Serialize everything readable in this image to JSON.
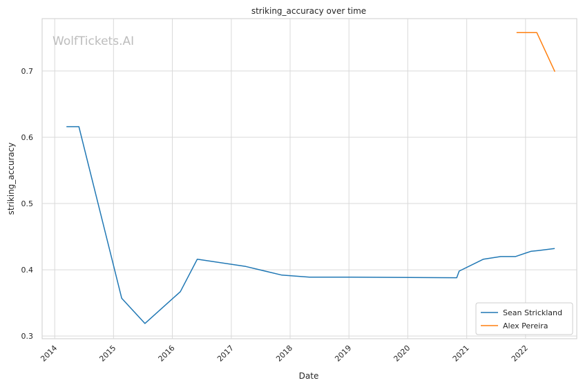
{
  "chart_data": {
    "type": "line",
    "title": "striking_accuracy over time",
    "xlabel": "Date",
    "ylabel": "striking_accuracy",
    "watermark": "WolfTickets.AI",
    "x_ticks": [
      "2014",
      "2015",
      "2016",
      "2017",
      "2018",
      "2019",
      "2020",
      "2021",
      "2022"
    ],
    "y_ticks": [
      0.3,
      0.4,
      0.5,
      0.6,
      0.7
    ],
    "xlim": [
      "2013-10-15",
      "2022-11-15"
    ],
    "ylim": [
      0.296,
      0.779
    ],
    "grid": true,
    "legend_position": "lower-right",
    "series": [
      {
        "name": "Sean Strickland",
        "color": "#1f77b4",
        "points": [
          {
            "x": "2014-03-15",
            "y": 0.616
          },
          {
            "x": "2014-05-31",
            "y": 0.616
          },
          {
            "x": "2015-02-21",
            "y": 0.357
          },
          {
            "x": "2015-07-15",
            "y": 0.319
          },
          {
            "x": "2016-02-20",
            "y": 0.367
          },
          {
            "x": "2016-06-04",
            "y": 0.416
          },
          {
            "x": "2017-04-01",
            "y": 0.405
          },
          {
            "x": "2017-11-11",
            "y": 0.392
          },
          {
            "x": "2018-05-01",
            "y": 0.389
          },
          {
            "x": "2019-01-01",
            "y": 0.389
          },
          {
            "x": "2020-10-31",
            "y": 0.388
          },
          {
            "x": "2020-11-15",
            "y": 0.398
          },
          {
            "x": "2021-04-15",
            "y": 0.416
          },
          {
            "x": "2021-07-31",
            "y": 0.42
          },
          {
            "x": "2021-10-30",
            "y": 0.42
          },
          {
            "x": "2022-02-05",
            "y": 0.428
          },
          {
            "x": "2022-03-20",
            "y": 0.429
          },
          {
            "x": "2022-07-01",
            "y": 0.432
          }
        ]
      },
      {
        "name": "Alex Pereira",
        "color": "#ff7f0e",
        "points": [
          {
            "x": "2021-11-06",
            "y": 0.758
          },
          {
            "x": "2022-03-12",
            "y": 0.758
          },
          {
            "x": "2022-07-02",
            "y": 0.699
          }
        ]
      }
    ]
  }
}
